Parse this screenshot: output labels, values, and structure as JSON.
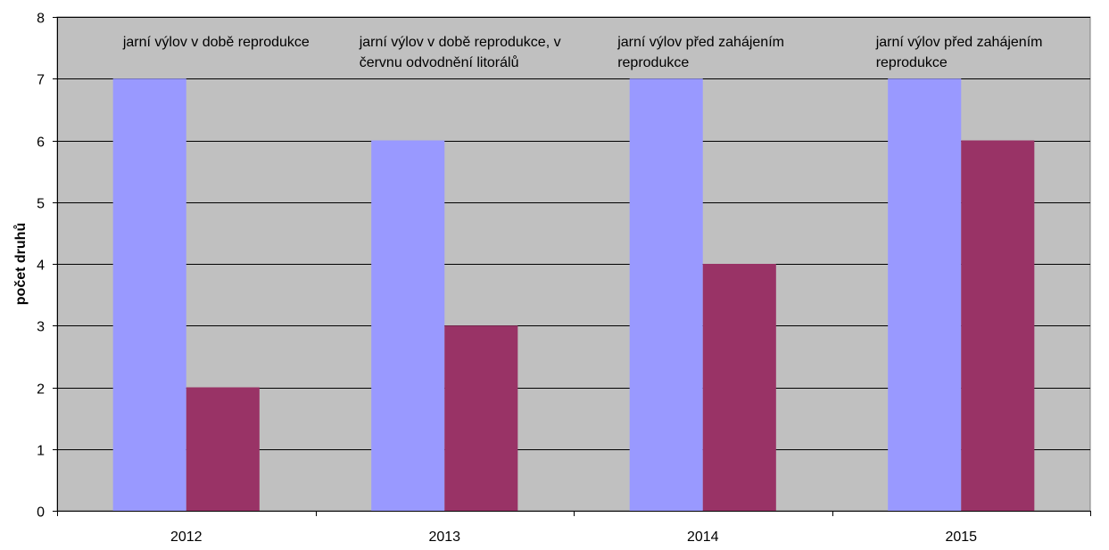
{
  "chart_data": {
    "type": "bar",
    "title": "",
    "xlabel": "",
    "ylabel": "počet druhů",
    "ylim": [
      0,
      8
    ],
    "yticks": [
      0,
      1,
      2,
      3,
      4,
      5,
      6,
      7,
      8
    ],
    "grid": true,
    "legend": "none",
    "categories": [
      "2012",
      "2013",
      "2014",
      "2015"
    ],
    "series": [
      {
        "values": [
          7,
          6,
          7,
          7
        ],
        "color": "#9999ff"
      },
      {
        "values": [
          2,
          3,
          4,
          6
        ],
        "color": "#993366"
      }
    ],
    "annotations": [
      [
        "jarní výlov v době reprodukce"
      ],
      [
        "jarní výlov v době reprodukce, v",
        "červnu odvodnění litorálů"
      ],
      [
        "jarní výlov před zahájením",
        "reprodukce"
      ],
      [
        "jarní výlov před zahájením",
        "reprodukce"
      ]
    ],
    "colors": {
      "plot_background": "#c0c0c0",
      "gridline": "#000000"
    }
  }
}
